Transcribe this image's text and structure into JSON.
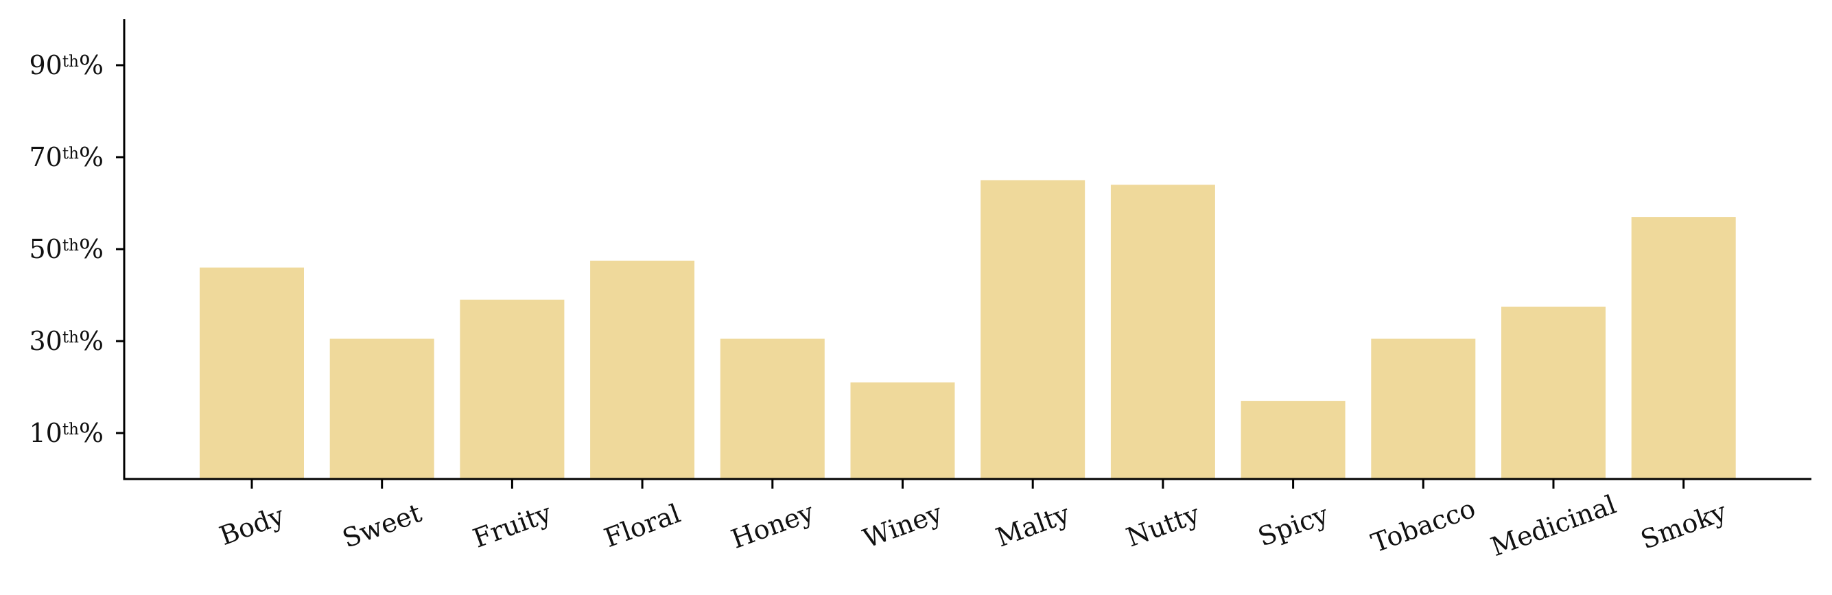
{
  "chart_data": {
    "type": "bar",
    "title": "",
    "xlabel": "",
    "ylabel": "",
    "categories": [
      "Body",
      "Sweet",
      "Fruity",
      "Floral",
      "Honey",
      "Winey",
      "Malty",
      "Nutty",
      "Spicy",
      "Tobacco",
      "Medicinal",
      "Smoky"
    ],
    "values": [
      46,
      30.5,
      39,
      47.5,
      30.5,
      21,
      65,
      64,
      17,
      30.5,
      37.5,
      57
    ],
    "ylim": [
      0,
      100
    ],
    "yticks": [
      {
        "value": 10,
        "num": "10",
        "sup": "th",
        "suffix": "%"
      },
      {
        "value": 30,
        "num": "30",
        "sup": "th",
        "suffix": "%"
      },
      {
        "value": 50,
        "num": "50",
        "sup": "th",
        "suffix": "%"
      },
      {
        "value": 70,
        "num": "70",
        "sup": "th",
        "suffix": "%"
      },
      {
        "value": 90,
        "num": "90",
        "sup": "th",
        "suffix": "%"
      }
    ],
    "bar_color": "#efd99b",
    "axis_color": "#000000",
    "grid": false,
    "legend": "none",
    "xtick_rotation_deg": -20
  }
}
